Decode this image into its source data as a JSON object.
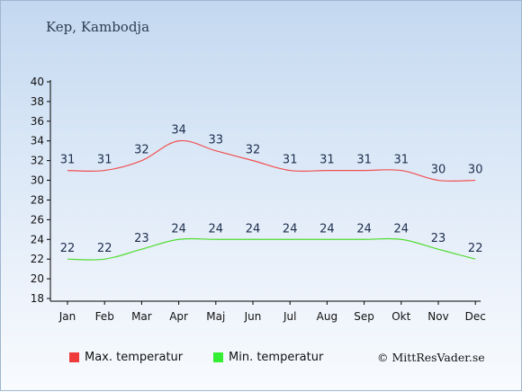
{
  "title": "Kep, Kambodja",
  "copyright": "© MittResVader.se",
  "colors": {
    "max_line": "#f05050",
    "min_line": "#50dc30",
    "max_swatch": "#ee3b3b",
    "min_swatch": "#33ee33",
    "label_text": "#1e2d4d",
    "axis": "#000000"
  },
  "chart_data": {
    "type": "line",
    "categories": [
      "Jan",
      "Feb",
      "Mar",
      "Apr",
      "Maj",
      "Jun",
      "Jul",
      "Aug",
      "Sep",
      "Okt",
      "Nov",
      "Dec"
    ],
    "y_ticks": [
      18,
      20,
      22,
      24,
      26,
      28,
      30,
      32,
      34,
      36,
      38,
      40
    ],
    "ylim": [
      18,
      40
    ],
    "grid": false,
    "legend_position": "bottom",
    "series": [
      {
        "name": "Max. temperatur",
        "values": [
          31,
          31,
          32,
          34,
          33,
          32,
          31,
          31,
          31,
          31,
          30,
          30
        ]
      },
      {
        "name": "Min. temperatur",
        "values": [
          22,
          22,
          23,
          24,
          24,
          24,
          24,
          24,
          24,
          24,
          23,
          22
        ]
      }
    ]
  }
}
